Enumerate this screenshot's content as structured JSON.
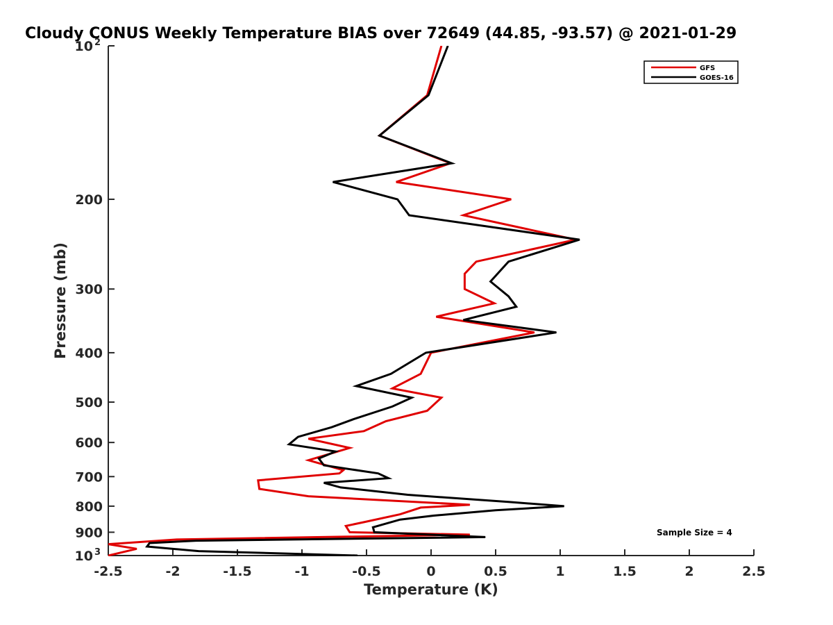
{
  "chart_data": {
    "type": "line",
    "title": "Cloudy CONUS Weekly Temperature BIAS over 72649 (44.85, -93.57) @ 2021-01-29",
    "xlabel": "Temperature (K)",
    "ylabel": "Pressure (mb)",
    "xlim": [
      -2.5,
      2.5
    ],
    "ylim": [
      100,
      1000
    ],
    "y_scale": "log",
    "y_reversed": true,
    "grid": false,
    "legend_position": "top-right",
    "x_ticks": [
      "-2.5",
      "-2",
      "-1.5",
      "-1",
      "-0.5",
      "0",
      "0.5",
      "1",
      "1.5",
      "2",
      "2.5"
    ],
    "x_tick_values": [
      -2.5,
      -2,
      -1.5,
      -1,
      -0.5,
      0,
      0.5,
      1,
      1.5,
      2,
      2.5
    ],
    "y_ticks": [
      {
        "value": 100,
        "base": "10",
        "exp": "2"
      },
      {
        "value": 200,
        "label": "200"
      },
      {
        "value": 300,
        "label": "300"
      },
      {
        "value": 400,
        "label": "400"
      },
      {
        "value": 500,
        "label": "500"
      },
      {
        "value": 600,
        "label": "600"
      },
      {
        "value": 700,
        "label": "700"
      },
      {
        "value": 800,
        "label": "800"
      },
      {
        "value": 900,
        "label": "900"
      },
      {
        "value": 1000,
        "base": "10",
        "exp": "3"
      }
    ],
    "series": [
      {
        "name": "GFS",
        "color": "#e00000",
        "points": [
          [
            0.08,
            100
          ],
          [
            -0.03,
            125
          ],
          [
            -0.4,
            150
          ],
          [
            0.15,
            170
          ],
          [
            -0.27,
            185
          ],
          [
            0.62,
            200
          ],
          [
            0.25,
            215
          ],
          [
            1.12,
            240
          ],
          [
            0.35,
            265
          ],
          [
            0.26,
            280
          ],
          [
            0.26,
            300
          ],
          [
            0.49,
            320
          ],
          [
            0.04,
            340
          ],
          [
            0.8,
            365
          ],
          [
            0.0,
            400
          ],
          [
            -0.08,
            440
          ],
          [
            -0.3,
            470
          ],
          [
            0.08,
            490
          ],
          [
            -0.03,
            520
          ],
          [
            -0.35,
            545
          ],
          [
            -0.52,
            570
          ],
          [
            -0.95,
            590
          ],
          [
            -0.63,
            615
          ],
          [
            -0.95,
            650
          ],
          [
            -0.68,
            680
          ],
          [
            -0.71,
            690
          ],
          [
            -1.34,
            712
          ],
          [
            -1.33,
            740
          ],
          [
            -0.95,
            765
          ],
          [
            0.3,
            795
          ],
          [
            -0.08,
            805
          ],
          [
            -0.24,
            830
          ],
          [
            -0.52,
            860
          ],
          [
            -0.66,
            875
          ],
          [
            -0.63,
            900
          ],
          [
            0.3,
            910
          ],
          [
            -1.97,
            930
          ],
          [
            -2.5,
            950
          ],
          [
            -2.28,
            970
          ],
          [
            -2.5,
            1000
          ]
        ]
      },
      {
        "name": "GOES-16",
        "color": "#000000",
        "points": [
          [
            0.13,
            100
          ],
          [
            -0.02,
            125
          ],
          [
            -0.4,
            150
          ],
          [
            0.16,
            170
          ],
          [
            -0.76,
            185
          ],
          [
            -0.26,
            200
          ],
          [
            -0.17,
            215
          ],
          [
            1.15,
            240
          ],
          [
            0.6,
            265
          ],
          [
            0.46,
            290
          ],
          [
            0.6,
            310
          ],
          [
            0.66,
            325
          ],
          [
            0.25,
            345
          ],
          [
            0.97,
            365
          ],
          [
            -0.04,
            400
          ],
          [
            -0.31,
            440
          ],
          [
            -0.58,
            465
          ],
          [
            -0.15,
            490
          ],
          [
            -0.3,
            510
          ],
          [
            -0.6,
            540
          ],
          [
            -0.77,
            560
          ],
          [
            -1.03,
            585
          ],
          [
            -1.1,
            605
          ],
          [
            -0.74,
            625
          ],
          [
            -0.87,
            645
          ],
          [
            -0.83,
            665
          ],
          [
            -0.41,
            690
          ],
          [
            -0.33,
            705
          ],
          [
            -0.83,
            720
          ],
          [
            -0.7,
            735
          ],
          [
            -0.18,
            760
          ],
          [
            0.6,
            785
          ],
          [
            1.03,
            800
          ],
          [
            0.5,
            815
          ],
          [
            0.02,
            835
          ],
          [
            -0.24,
            850
          ],
          [
            -0.45,
            880
          ],
          [
            -0.44,
            900
          ],
          [
            0.42,
            920
          ],
          [
            -1.82,
            935
          ],
          [
            -2.18,
            945
          ],
          [
            -2.2,
            960
          ],
          [
            -1.8,
            980
          ],
          [
            -0.57,
            1000
          ]
        ]
      }
    ],
    "annotation": "Sample Size = 4"
  }
}
